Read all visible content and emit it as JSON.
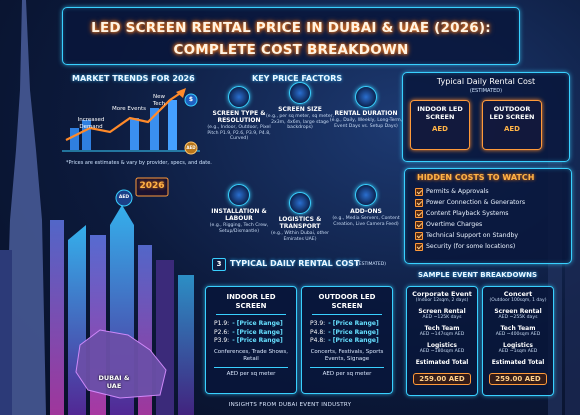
{
  "header": {
    "title_line1": "LED SCREEN RENTAL PRICE IN DUBAI & UAE (2026):",
    "title_line2": "COMPLETE COST BREAKDOWN"
  },
  "market_trends": {
    "title": "MARKET TRENDS FOR 2026",
    "labels": [
      "Increased Demand",
      "More Events",
      "New Tech"
    ],
    "coins": [
      "$",
      "AED"
    ],
    "note": "*Prices are estimates & vary by provider, specs, and date.",
    "sign_year": "2026",
    "badge": "AED",
    "map_label": "DUBAI & UAE"
  },
  "key_factors": {
    "title": "KEY PRICE FACTORS",
    "items": [
      {
        "title": "SCREEN TYPE & RESOLUTION",
        "detail": "(e.g., Indoor, Outdoor, Pixel Pitch P1.9, P2.6, P3.9, P4.8, Curved)"
      },
      {
        "title": "SCREEN SIZE",
        "detail": "(e.g., per sq meter, sq meter, 2x3m, 4x6m, large stage backdrops)"
      },
      {
        "title": "RENTAL DURATION",
        "detail": "(e.g., Daily, Weekly, Long-Term, Event Days vs. Setup Days)"
      },
      {
        "title": "INSTALLATION & LABOUR",
        "detail": "(e.g., Rigging, Tech Crew, Setup/Dismantle)"
      },
      {
        "title": "LOGISTICS & TRANSPORT",
        "detail": "(e.g., Within Dubai, other Emirates UAE)"
      },
      {
        "title": "ADD-ONS",
        "detail": "(e.g., Media Servers, Content Creation, Live Camera Feed)"
      }
    ]
  },
  "typical_cost_summary": {
    "title": "Typical Daily Rental Cost",
    "subtitle": "(ESTIMATED)",
    "cards": [
      {
        "label": "INDOOR LED SCREEN",
        "currency": "AED"
      },
      {
        "label": "OUTDOOR LED SCREEN",
        "currency": "AED"
      }
    ]
  },
  "hidden_costs": {
    "title": "HIDDEN COSTS TO WATCH",
    "items": [
      "Permits & Approvals",
      "Power Connection & Generators",
      "Content Playback Systems",
      "Overtime Charges",
      "Technical Support on Standby",
      "Security (for some locations)"
    ]
  },
  "sample_events": {
    "title": "SAMPLE EVENT BREAKDOWNS",
    "events": [
      {
        "name": "Corporate Event",
        "spec": "(Indoor 12sqm, 2 days)",
        "lines": [
          {
            "label": "Screen Rental",
            "value": "AED ~125K days"
          },
          {
            "label": "Tech Team",
            "value": "AED ~147sqm AED"
          },
          {
            "label": "Logistics",
            "value": "AED ~180sqm AED"
          }
        ],
        "total_label": "Estimated Total",
        "total": "259.00 AED"
      },
      {
        "name": "Concert",
        "spec": "(Outdoor 100sqm, 1 day)",
        "lines": [
          {
            "label": "Screen Rental",
            "value": "AED ~255K days"
          },
          {
            "label": "Tech Team",
            "value": "AED ~400sqm AED"
          },
          {
            "label": "Logistics",
            "value": "AED ~1sqm AED"
          }
        ],
        "total_label": "Estimated Total",
        "total": "259.00 AED"
      }
    ]
  },
  "typical_cost_detail": {
    "number": "3",
    "title": "TYPICAL DAILY RENTAL COST",
    "subtitle": "(ESTIMATED)",
    "cards": [
      {
        "title": "INDOOR LED SCREEN",
        "rows": [
          {
            "pitch": "P1.9:",
            "range": "- [Price Range]"
          },
          {
            "pitch": "P2.6:",
            "range": "- [Price Range]"
          },
          {
            "pitch": "P3.9:",
            "range": "- [Price Range]"
          }
        ],
        "use": "Conferences, Trade Shows, Retail",
        "unit": "AED per sq meter"
      },
      {
        "title": "OUTDOOR LED SCREEN",
        "rows": [
          {
            "pitch": "P3.9:",
            "range": "- [Price Range]"
          },
          {
            "pitch": "P4.8:",
            "range": "- [Price Range]"
          },
          {
            "pitch": "P4.8:",
            "range": "- [Price Range]"
          }
        ],
        "use": "Concerts, Festivals, Sports Events, Signage",
        "unit": "AED per sq meter"
      }
    ]
  },
  "footer": "INSIGHTS FROM DUBAI EVENT INDUSTRY"
}
